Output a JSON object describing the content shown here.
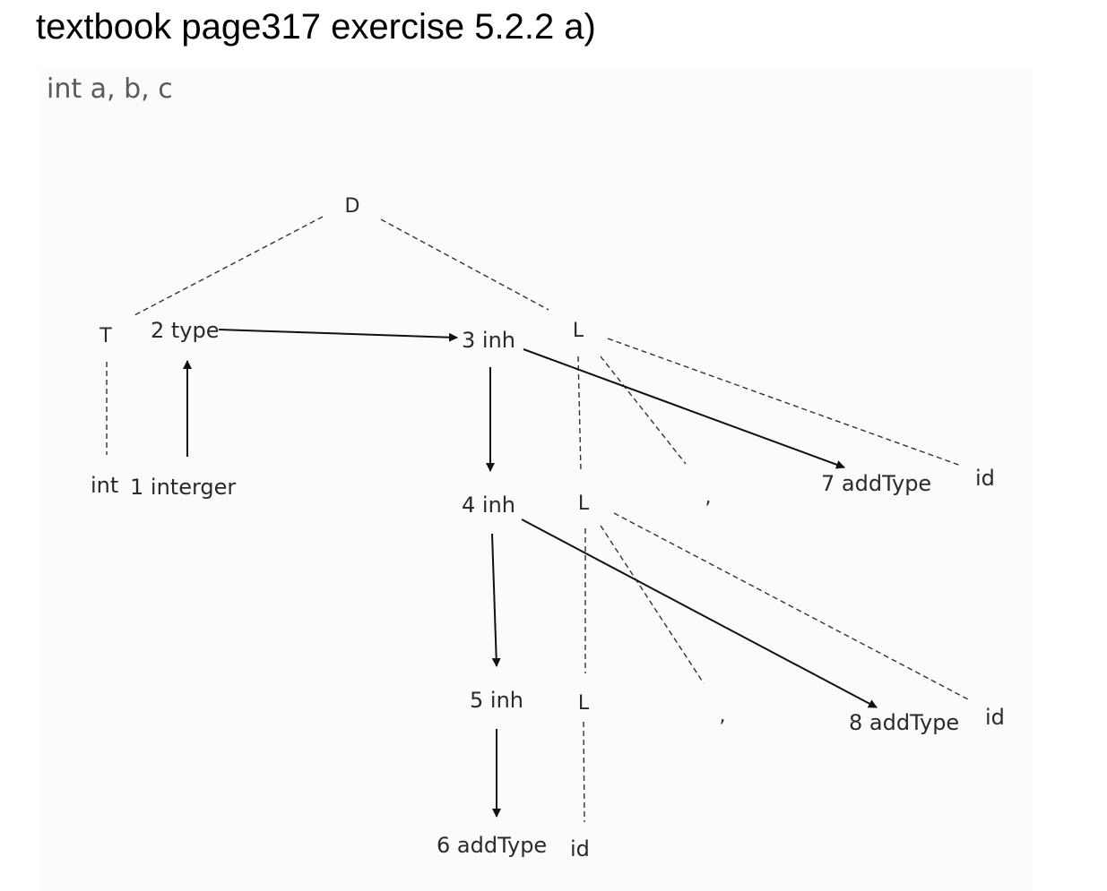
{
  "title": "textbook page317 exercise 5.2.2 a)",
  "caption": "int a, b, c",
  "nodes": {
    "D": "D",
    "T": "T",
    "type2": "2 type",
    "inh3": "3 inh",
    "L1": "L",
    "int": "int",
    "interger1": "1 interger",
    "inh4": "4 inh",
    "L2": "L",
    "comma1": ",",
    "addType7": "7 addType",
    "id1": "id",
    "inh5": "5 inh",
    "L3": "L",
    "comma2": ",",
    "addType8": "8 addType",
    "id2": "id",
    "addType6": "6 addType",
    "id3": "id"
  }
}
